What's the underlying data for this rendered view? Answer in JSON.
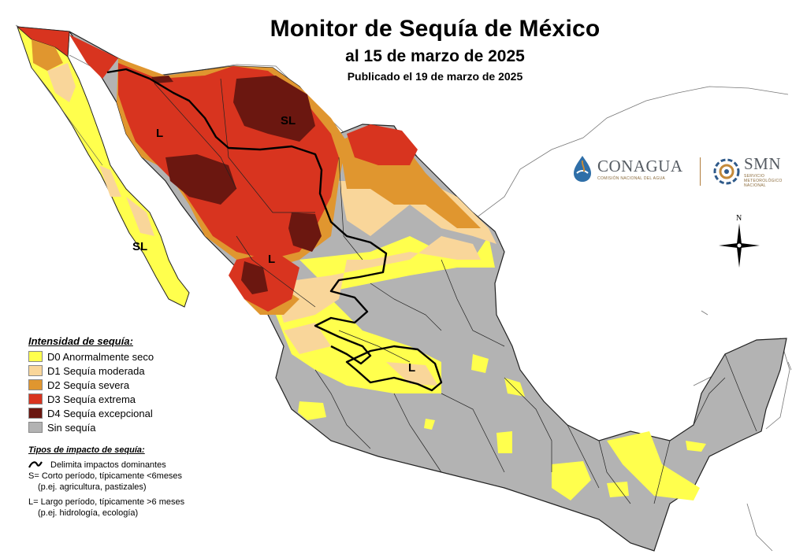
{
  "header": {
    "title": "Monitor de Sequía de México",
    "subtitle": "al 15 de marzo de 2025",
    "published": "Publicado el 19 de marzo de 2025"
  },
  "legend": {
    "title": "Intensidad de sequía:",
    "items": [
      {
        "label": "D0 Anormalmente seco",
        "color": "#ffff4d"
      },
      {
        "label": "D1 Sequía moderada",
        "color": "#f9d69a"
      },
      {
        "label": "D2 Sequía severa",
        "color": "#e0962f"
      },
      {
        "label": "D3 Sequía extrema",
        "color": "#d8341f"
      },
      {
        "label": "D4 Sequía excepcional",
        "color": "#6b1710"
      },
      {
        "label": "Sin sequía",
        "color": "#b3b3b3"
      }
    ]
  },
  "impact": {
    "title": "Tipos de impacto de sequía:",
    "line_label": "Delimita impactos dominantes",
    "s_line1": "S= Corto período, típicamente <6meses",
    "s_line2": "(p.ej. agricultura, pastizales)",
    "l_line1": "L= Largo período, típicamente >6 meses",
    "l_line2": "(p.ej. hidrología, ecología)"
  },
  "map_labels": {
    "l_sonora": "L",
    "sl_chihuahua": "SL",
    "sl_bcs": "SL",
    "l_sinaloa": "L",
    "l_centro": "L"
  },
  "logos": {
    "conagua_name": "CONAGUA",
    "conagua_sub": "COMISIÓN NACIONAL DEL AGUA",
    "smn_name": "SMN",
    "smn_sub": "SERVICIO METEOROLÓGICO NACIONAL"
  },
  "compass": {
    "north": "N"
  }
}
